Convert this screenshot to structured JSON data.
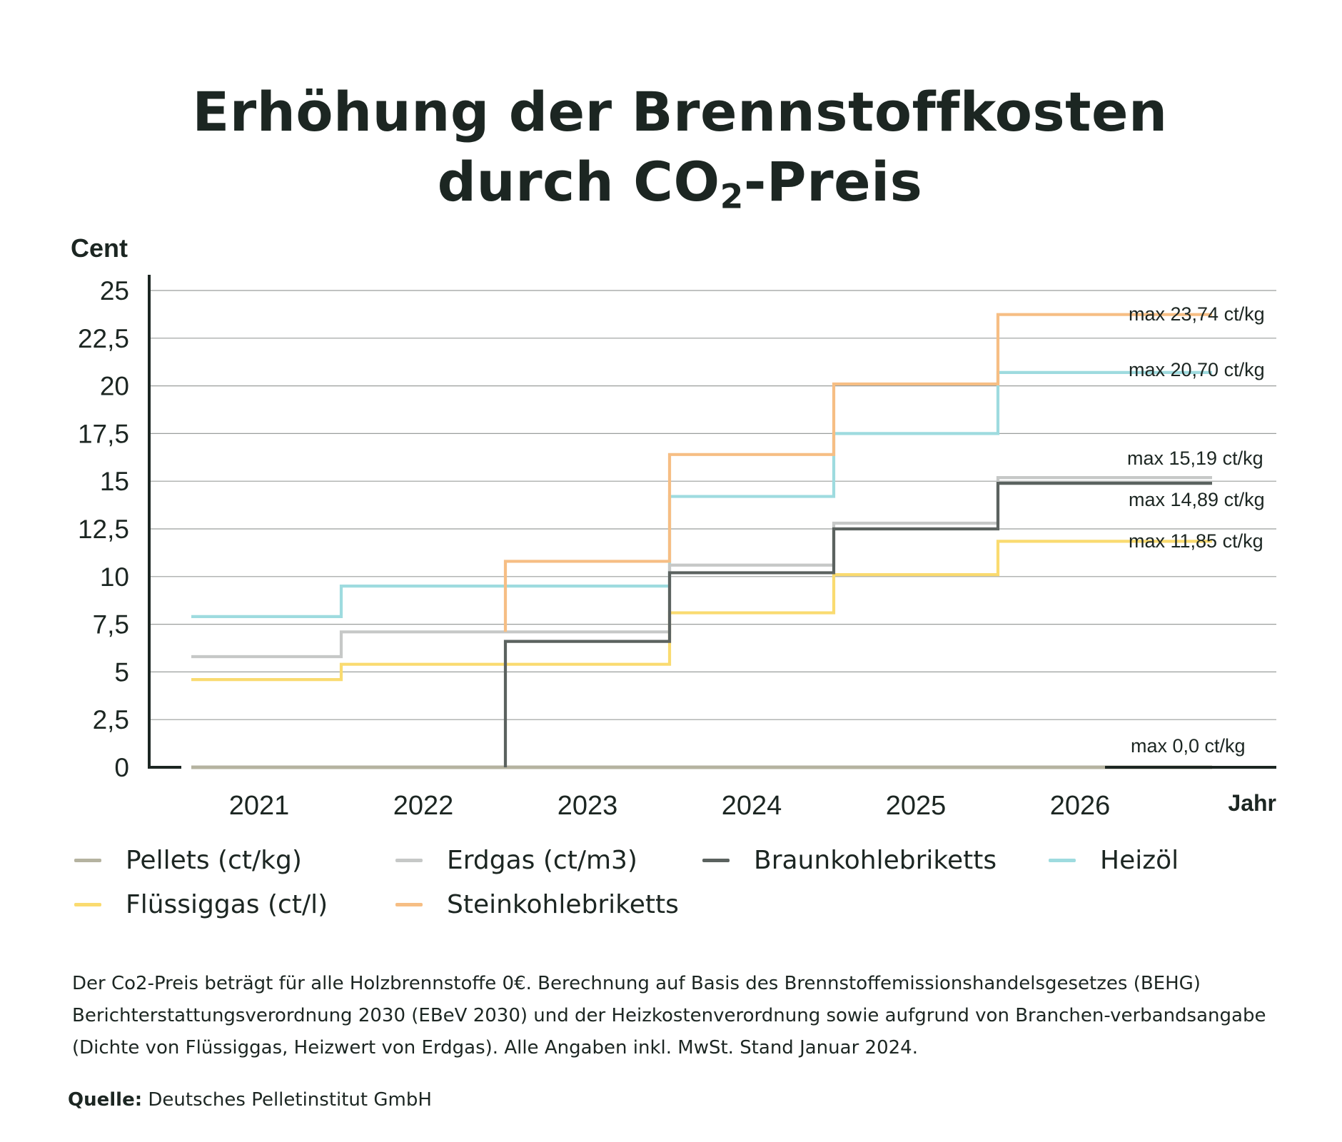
{
  "title": {
    "line1": "Erhöhung der Brennstoffkosten",
    "line2_pre": "durch CO",
    "line2_sub": "2",
    "line2_post": "-Preis"
  },
  "chart_data": {
    "type": "line",
    "step": true,
    "ylabel": "Cent",
    "xlabel": "Jahr",
    "ylim": [
      0,
      25
    ],
    "yticks": [
      "0",
      "2,5",
      "5",
      "7,5",
      "10",
      "12,5",
      "15",
      "17,5",
      "20",
      "22,5",
      "25"
    ],
    "categories": [
      "2021",
      "2022",
      "2023",
      "2024",
      "2025",
      "2026"
    ],
    "grid": true,
    "series": [
      {
        "name": "Pellets (ct/kg)",
        "color": "#b5b3a0",
        "values": [
          0,
          0,
          0,
          0,
          0,
          0
        ]
      },
      {
        "name": "Erdgas (ct/m3)",
        "color": "#c6c8c7",
        "values": [
          5.8,
          7.1,
          7.1,
          10.6,
          12.8,
          15.19
        ]
      },
      {
        "name": "Braunkohlebriketts",
        "color": "#5b625f",
        "values": [
          null,
          null,
          6.6,
          10.2,
          12.5,
          14.89
        ]
      },
      {
        "name": "Heizöl",
        "color": "#9edbdf",
        "values": [
          7.9,
          9.5,
          9.5,
          14.2,
          17.5,
          20.7
        ]
      },
      {
        "name": "Flüssiggas (ct/l)",
        "color": "#fadb70",
        "values": [
          4.6,
          5.4,
          5.4,
          8.1,
          10.1,
          11.85
        ]
      },
      {
        "name": "Steinkohlebriketts",
        "color": "#f6be84",
        "values": [
          null,
          null,
          10.8,
          16.4,
          20.1,
          23.74
        ]
      }
    ],
    "annotations": [
      "max 23,74 ct/kg",
      "max 20,70 ct/kg",
      "max 15,19 ct/kg",
      "max 14,89 ct/kg",
      "max 11,85 ct/kg",
      "max 0,0 ct/kg"
    ]
  },
  "legend": [
    {
      "label": "Pellets (ct/kg)",
      "color": "#b5b3a0"
    },
    {
      "label": "Erdgas (ct/m3)",
      "color": "#c6c8c7"
    },
    {
      "label": "Braunkohlebriketts",
      "color": "#5b625f"
    },
    {
      "label": "Heizöl",
      "color": "#9edbdf"
    },
    {
      "label": "Flüssiggas (ct/l)",
      "color": "#fadb70"
    },
    {
      "label": "Steinkohlebriketts",
      "color": "#f6be84"
    }
  ],
  "note": "Der Co2-Preis beträgt für alle Holzbrennstoffe 0€. Berechnung auf Basis des Brennstoffemissionshandelsgesetzes (BEHG) Berichterstattungsverordnung 2030 (EBeV 2030) und der Heizkostenverordnung sowie aufgrund von Branchen-verbandsangabe (Dichte von Flüssiggas, Heizwert von Erdgas). Alle Angaben inkl. MwSt. Stand Januar 2024.",
  "source": {
    "label": "Quelle:",
    "text": " Deutsches Pelletinstitut GmbH"
  }
}
